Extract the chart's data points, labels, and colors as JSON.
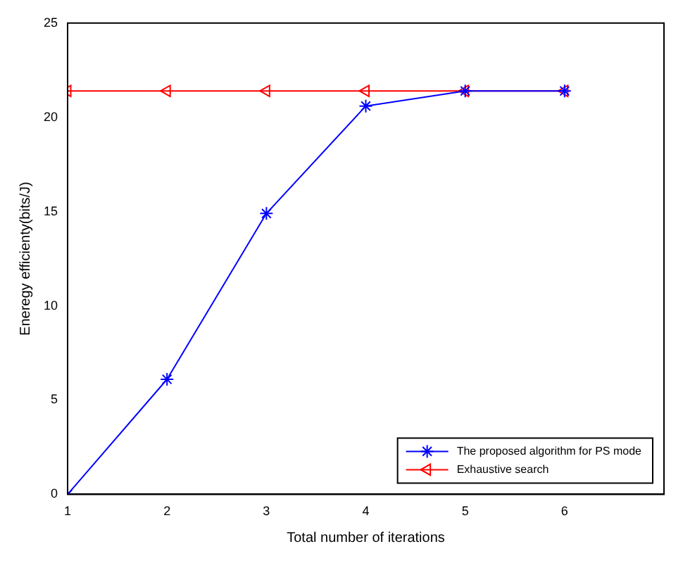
{
  "chart_data": {
    "type": "line",
    "xlabel": "Total number of iterations",
    "ylabel": "Eneregy efficienty(bits/J)",
    "x": [
      1,
      2,
      3,
      4,
      5,
      6
    ],
    "xlim": [
      1,
      7
    ],
    "xticks": [
      1,
      2,
      3,
      4,
      5,
      6
    ],
    "ylim": [
      0,
      25
    ],
    "yticks": [
      0,
      5,
      10,
      15,
      20,
      25
    ],
    "grid": false,
    "legend": "bottom right",
    "line_style": "solid",
    "series": [
      {
        "name": "The proposed algorithm for PS mode",
        "color": "#0000ff",
        "marker": "cross",
        "values": [
          0,
          6.1,
          14.9,
          20.6,
          21.4,
          21.4
        ]
      },
      {
        "name": "Exhaustive search",
        "color": "#ff0000",
        "marker": "triangle",
        "values": [
          21.4,
          21.4,
          21.4,
          21.4,
          21.4,
          21.4
        ]
      }
    ]
  }
}
